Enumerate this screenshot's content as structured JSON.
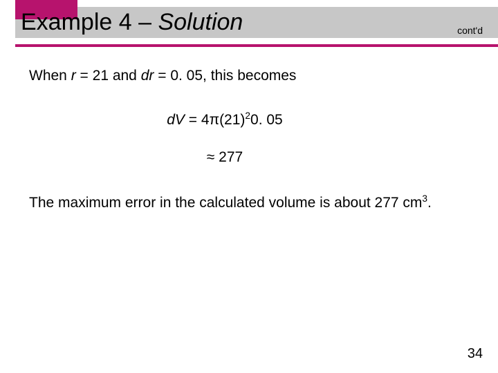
{
  "header": {
    "title_prefix": "Example 4 – ",
    "title_italic": "Solution",
    "contd": "cont'd"
  },
  "line1_pre": "When ",
  "line1_r": "r",
  "line1_mid1": " = 21 and ",
  "line1_dr": "dr",
  "line1_mid2": " = 0. 05, this becomes",
  "eq1_dv": "dV",
  "eq1_eq": " = 4",
  "eq1_pi": "π",
  "eq1_open": "(21)",
  "eq1_exp": "2",
  "eq1_tail": "0. 05",
  "eq2_sym": "≈",
  "eq2_val": " 277",
  "para_a": "The maximum error in the calculated volume is about 277 cm",
  "para_exp": "3",
  "para_end": ".",
  "pagenum": "34",
  "colors": {
    "accent": "#b7136d",
    "bar": "#c7c7c7",
    "bg": "#ffffff",
    "text": "#000000"
  }
}
